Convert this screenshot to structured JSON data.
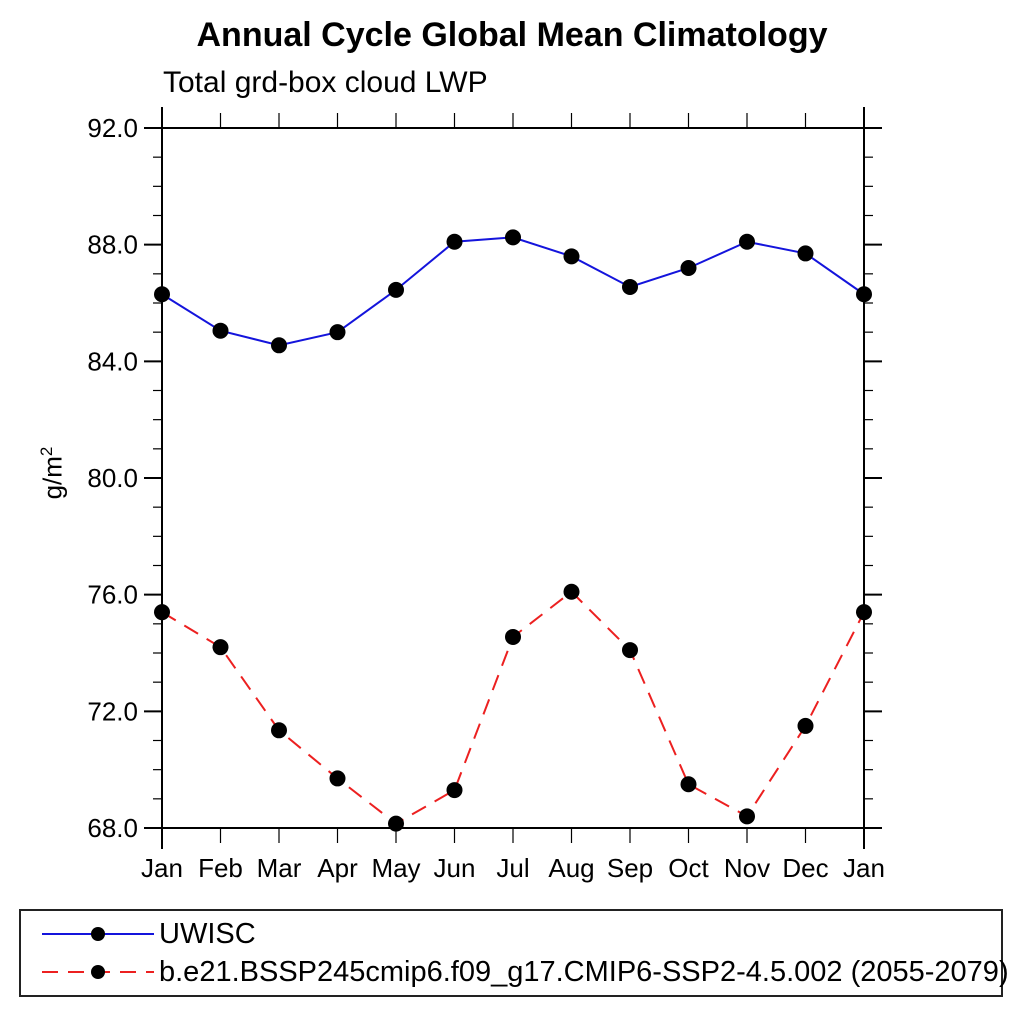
{
  "chart": {
    "title": "Annual Cycle Global Mean Climatology",
    "subtitle": "Total grd-box cloud LWP",
    "yaxis_label_base": "g/m",
    "yaxis_label_exponent": "2"
  },
  "chart_data": {
    "type": "line",
    "title": "Annual Cycle Global Mean Climatology",
    "subtitle": "Total grd-box cloud LWP",
    "ylabel": "g/m²",
    "xlabel": "",
    "categories": [
      "Jan",
      "Feb",
      "Mar",
      "Apr",
      "May",
      "Jun",
      "Jul",
      "Aug",
      "Sep",
      "Oct",
      "Nov",
      "Dec",
      "Jan"
    ],
    "series": [
      {
        "name": "UWISC",
        "color": "#1414dc",
        "line_style": "solid",
        "line_width": 2,
        "marker": "filled-circle",
        "marker_color": "#000000",
        "values": [
          86.3,
          85.05,
          84.55,
          85.0,
          86.45,
          88.1,
          88.25,
          87.6,
          86.55,
          87.2,
          88.1,
          87.7,
          86.3
        ]
      },
      {
        "name": "b.e21.BSSP245cmip6.f09_g17.CMIP6-SSP2-4.5.002 (2055-2079)",
        "color": "#ec2020",
        "line_style": "dashed",
        "line_width": 2,
        "marker": "filled-circle",
        "marker_color": "#000000",
        "values": [
          75.4,
          74.2,
          71.35,
          69.7,
          68.15,
          69.3,
          74.55,
          76.1,
          74.1,
          69.5,
          68.4,
          71.5,
          75.4
        ]
      }
    ],
    "ylim": [
      68,
      92
    ],
    "yticks": [
      68,
      72,
      76,
      80,
      84,
      88,
      92
    ],
    "ytick_labels": [
      "68.0",
      "72.0",
      "76.0",
      "80.0",
      "84.0",
      "88.0",
      "92.0"
    ],
    "y_minor_step": 1,
    "grid": false,
    "frame": "full box with outward ticks on all four sides",
    "legend_position": "bottom, boxed, full width"
  },
  "legend": {
    "items": [
      {
        "label": "UWISC"
      },
      {
        "label": "b.e21.BSSP245cmip6.f09_g17.CMIP6-SSP2-4.5.002 (2055-2079)"
      }
    ]
  }
}
